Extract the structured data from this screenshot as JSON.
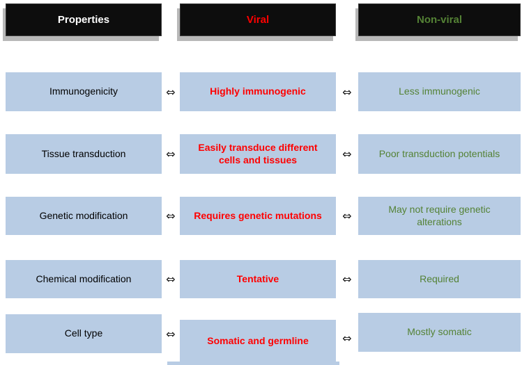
{
  "title_row": {
    "properties_label": "Properties",
    "viral_label": "Viral",
    "nonviral_label": "Non-viral"
  },
  "arrow": {
    "symbol": "⇔"
  },
  "rows": [
    {
      "property": "Immunogenicity",
      "viral": "Highly immunogenic",
      "nonviral": "Less immunogenic"
    },
    {
      "property": "Tissue transduction",
      "viral": "Easily transduce different cells and tissues",
      "nonviral": "Poor transduction potentials"
    },
    {
      "property": "Genetic modification",
      "viral": "Requires genetic mutations",
      "nonviral": "May not require genetic alterations"
    },
    {
      "property": "Chemical modification",
      "viral": "Tentative",
      "nonviral": "Required"
    },
    {
      "property": "Cell type",
      "viral": "Somatic and germline",
      "nonviral": "Mostly somatic"
    }
  ],
  "colors": {
    "header_bg": "#0d0d0d",
    "header_shadow": "#b8b8b8",
    "box_blue": "#b8cce4",
    "properties_text": "#ffffff",
    "viral_red": "#ff0000",
    "nonviral_green": "#548235",
    "property_body_text": "#000000",
    "arrow_color": "#1a1a1a"
  }
}
